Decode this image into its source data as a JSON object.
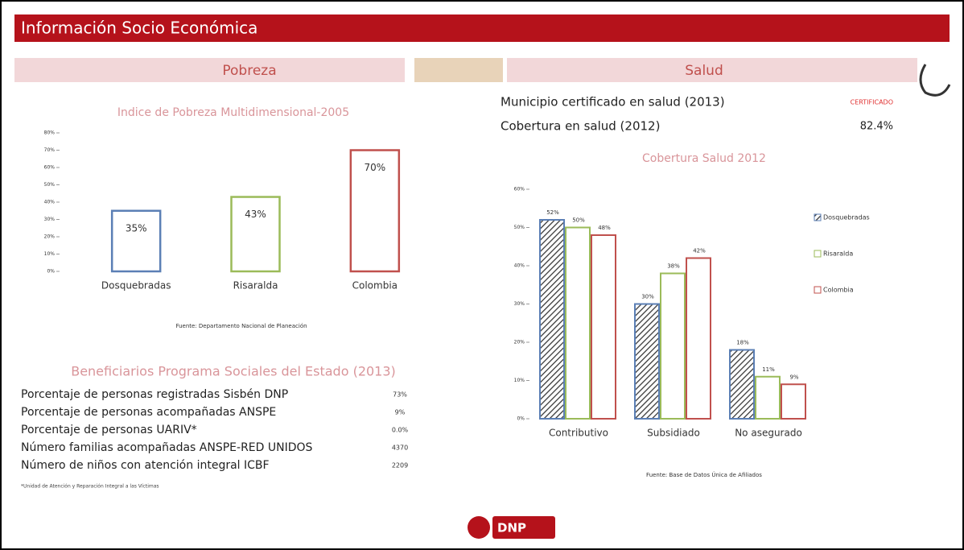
{
  "header": {
    "title": "Información Socio Económica"
  },
  "sections": {
    "pobreza": "Pobreza",
    "salud": "Salud"
  },
  "salud_info": [
    {
      "label": "Municipio certificado en salud (2013)",
      "value": "CERTIFICADO"
    },
    {
      "label": "Cobertura en salud (2012)",
      "value": "82.4%"
    }
  ],
  "chart_data": [
    {
      "type": "bar",
      "title": "Indice de Pobreza Multidimensional-2005",
      "categories": [
        "Dosquebradas",
        "Risaralda",
        "Colombia"
      ],
      "values": [
        35,
        43,
        70
      ],
      "value_labels": [
        "35%",
        "43%",
        "70%"
      ],
      "colors": [
        "#5b7fb5",
        "#9bbb59",
        "#c0504d"
      ],
      "ylim": [
        0,
        80
      ],
      "yticks": [
        {
          "value": 0,
          "label": "0%"
        },
        {
          "value": 10,
          "label": "10%"
        },
        {
          "value": 20,
          "label": "20%"
        },
        {
          "value": 30,
          "label": "30%"
        },
        {
          "value": 40,
          "label": "40%"
        },
        {
          "value": 50,
          "label": "50%"
        },
        {
          "value": 60,
          "label": "60%"
        },
        {
          "value": 70,
          "label": "70%"
        },
        {
          "value": 80,
          "label": "80%"
        }
      ],
      "source": "Fuente: Departamento Nacional de Planeación"
    },
    {
      "type": "grouped-bar",
      "title": "Cobertura Salud 2012",
      "categories": [
        "Contributivo",
        "Subsidiado",
        "No asegurado"
      ],
      "series": [
        {
          "name": "Dosquebradas",
          "color": "#5b7fb5",
          "values": [
            52,
            30,
            18
          ],
          "value_labels": [
            "52%",
            "30%",
            "18%"
          ]
        },
        {
          "name": "Risaralda",
          "color": "#9bbb59",
          "values": [
            50,
            38,
            11
          ],
          "value_labels": [
            "50%",
            "38%",
            "11%"
          ]
        },
        {
          "name": "Colombia",
          "color": "#c0504d",
          "values": [
            48,
            42,
            9
          ],
          "value_labels": [
            "48%",
            "42%",
            "9%"
          ]
        }
      ],
      "ylim": [
        0,
        60
      ],
      "yticks": [
        {
          "value": 0,
          "label": "0%"
        },
        {
          "value": 10,
          "label": "10%"
        },
        {
          "value": 20,
          "label": "20%"
        },
        {
          "value": 30,
          "label": "30%"
        },
        {
          "value": 40,
          "label": "40%"
        },
        {
          "value": 50,
          "label": "50%"
        },
        {
          "value": 60,
          "label": "60%"
        }
      ],
      "legend": "right",
      "source": "Fuente: Base de Datos Única de Afiliados"
    }
  ],
  "beneficiarios": {
    "title": "Beneficiarios Programa Sociales del Estado (2013)",
    "rows": [
      {
        "label": "Porcentaje de personas registradas Sisbén DNP",
        "value": "73%"
      },
      {
        "label": "Porcentaje de personas acompañadas ANSPE",
        "value": "9%"
      },
      {
        "label": "Porcentaje de personas UARIV*",
        "value": "0.0%"
      },
      {
        "label": "Número familias acompañadas ANSPE-RED UNIDOS",
        "value": "4370"
      },
      {
        "label": "Número de niños con atención integral ICBF",
        "value": "2209"
      }
    ],
    "footnote": "*Unidad de Atención y Reparación Integral a las Víctimas"
  },
  "logo": "DNP"
}
